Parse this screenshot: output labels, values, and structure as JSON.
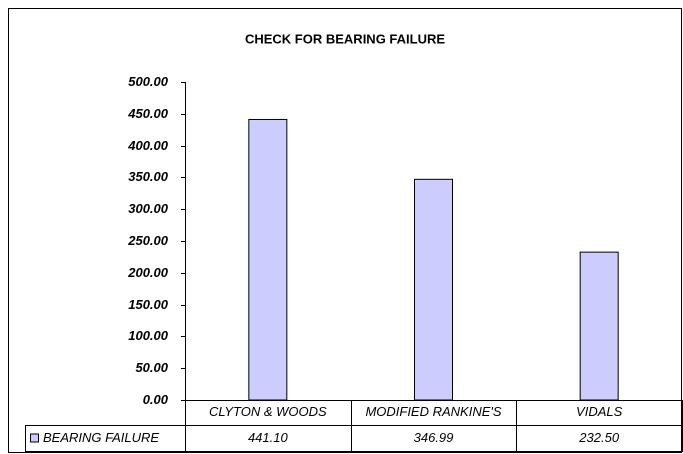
{
  "chart_data": {
    "type": "bar",
    "title": "CHECK FOR BEARING FAILURE",
    "categories": [
      "CLYTON & WOODS",
      "MODIFIED RANKINE'S",
      "VIDALS"
    ],
    "series": [
      {
        "name": "BEARING FAILURE",
        "color": "#ccccff",
        "values": [
          441.1,
          346.99,
          232.5
        ],
        "value_labels": [
          "441.10",
          "346.99",
          "232.50"
        ]
      }
    ],
    "ylim": [
      0,
      500
    ],
    "yticks": [
      {
        "value": 0,
        "label": "0.00"
      },
      {
        "value": 50,
        "label": "50.00"
      },
      {
        "value": 100,
        "label": "100.00"
      },
      {
        "value": 150,
        "label": "150.00"
      },
      {
        "value": 200,
        "label": "200.00"
      },
      {
        "value": 250,
        "label": "250.00"
      },
      {
        "value": 300,
        "label": "300.00"
      },
      {
        "value": 350,
        "label": "350.00"
      },
      {
        "value": 400,
        "label": "400.00"
      },
      {
        "value": 450,
        "label": "450.00"
      },
      {
        "value": 500,
        "label": "500.00"
      }
    ],
    "grid": false
  }
}
